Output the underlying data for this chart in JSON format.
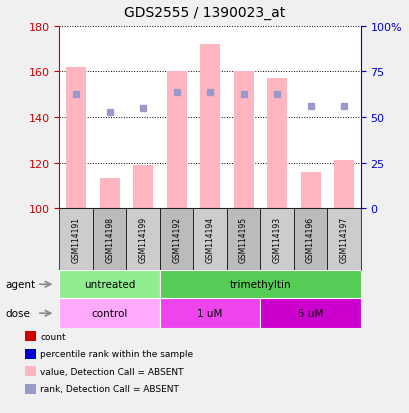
{
  "title": "GDS2555 / 1390023_at",
  "samples": [
    "GSM114191",
    "GSM114198",
    "GSM114199",
    "GSM114192",
    "GSM114194",
    "GSM114195",
    "GSM114193",
    "GSM114196",
    "GSM114197"
  ],
  "pink_bar_tops": [
    162,
    113,
    119,
    160,
    172,
    160,
    157,
    116,
    121
  ],
  "blue_square_y": [
    150,
    142,
    144,
    151,
    151,
    150,
    150,
    145,
    145
  ],
  "bar_base": 100,
  "ylim": [
    100,
    180
  ],
  "y2lim": [
    0,
    100
  ],
  "yticks_left": [
    100,
    120,
    140,
    160,
    180
  ],
  "yticks_right": [
    0,
    25,
    50,
    75,
    100
  ],
  "ytick_right_labels": [
    "0",
    "25",
    "50",
    "75",
    "100%"
  ],
  "agent_groups": [
    {
      "label": "untreated",
      "start": 0,
      "end": 3,
      "color": "#90EE90"
    },
    {
      "label": "trimethyltin",
      "start": 3,
      "end": 9,
      "color": "#55CC55"
    }
  ],
  "dose_groups": [
    {
      "label": "control",
      "start": 0,
      "end": 3,
      "color": "#FFAAFF"
    },
    {
      "label": "1 uM",
      "start": 3,
      "end": 6,
      "color": "#EE44EE"
    },
    {
      "label": "5 uM",
      "start": 6,
      "end": 9,
      "color": "#CC00CC"
    }
  ],
  "pink_bar_color": "#FFB6C1",
  "blue_square_color": "#9999CC",
  "bar_width": 0.6,
  "background_color": "#F0F0F0",
  "plot_bg": "#FFFFFF",
  "left_axis_color": "#CC0000",
  "right_axis_color": "#0000CC",
  "title_color": "#000000",
  "grid_color": "#000000",
  "sample_shade_even": "#CCCCCC",
  "sample_shade_odd": "#BBBBBB",
  "legend_items": [
    {
      "color": "#CC0000",
      "label": "count"
    },
    {
      "color": "#0000CC",
      "label": "percentile rank within the sample"
    },
    {
      "color": "#FFB6C1",
      "label": "value, Detection Call = ABSENT"
    },
    {
      "color": "#9999CC",
      "label": "rank, Detection Call = ABSENT"
    }
  ]
}
